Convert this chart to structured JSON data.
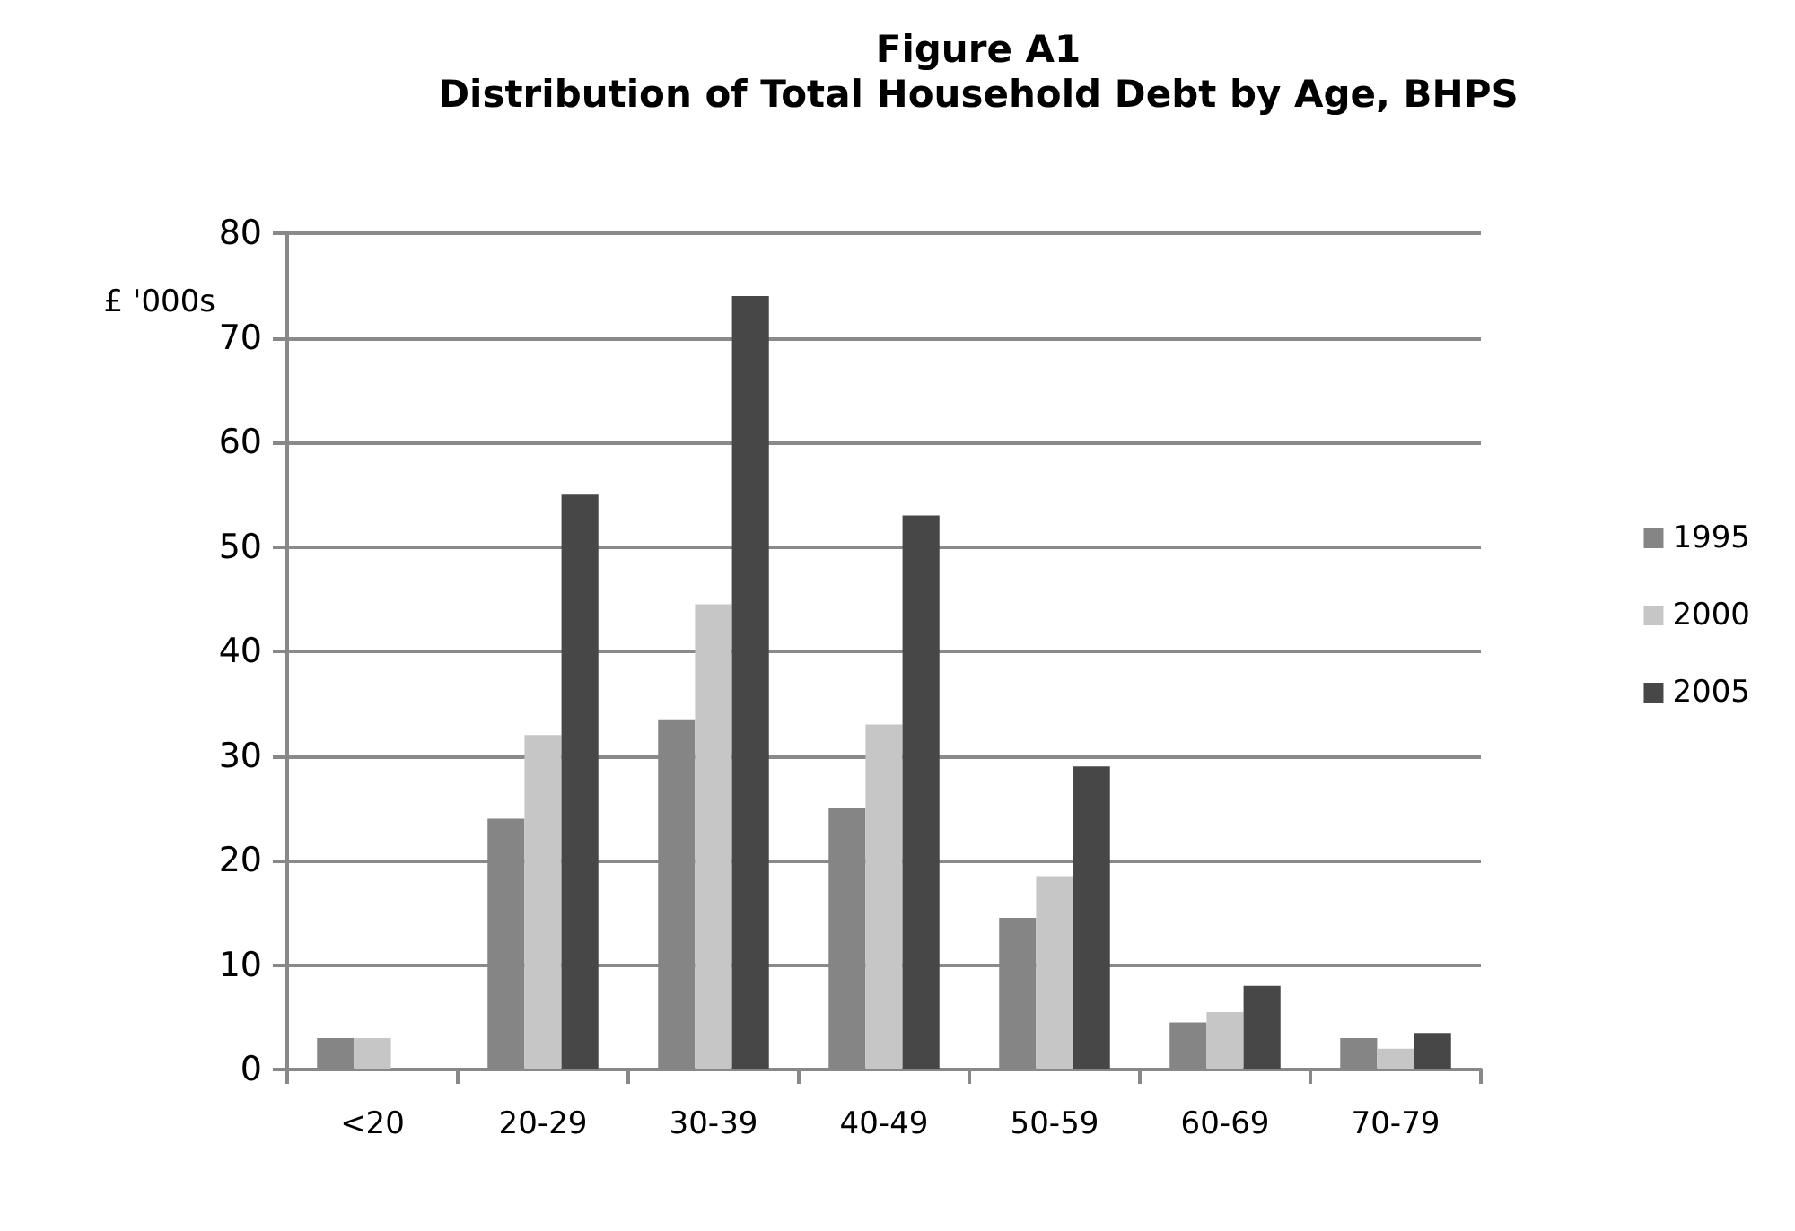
{
  "chart_data": {
    "type": "bar",
    "title": "Figure A1\nDistribution of Total Household Debt by Age, BHPS",
    "ylabel": "£ '000s",
    "categories": [
      "<20",
      "20-29",
      "30-39",
      "40-49",
      "50-59",
      "60-69",
      "70-79"
    ],
    "series": [
      {
        "name": "1995",
        "color": "#858585",
        "values": [
          3,
          24,
          33.5,
          25,
          14.5,
          4.5,
          3
        ]
      },
      {
        "name": "2000",
        "color": "#c6c6c6",
        "values": [
          3,
          32,
          44.5,
          33,
          18.5,
          5.5,
          2
        ]
      },
      {
        "name": "2005",
        "color": "#474747",
        "values": [
          null,
          55,
          74,
          53,
          29,
          8,
          3.5
        ]
      }
    ],
    "ylim": [
      0,
      80
    ],
    "yticks": [
      0,
      10,
      20,
      30,
      40,
      50,
      60,
      70,
      80
    ],
    "grid": "y",
    "legend": "right"
  }
}
